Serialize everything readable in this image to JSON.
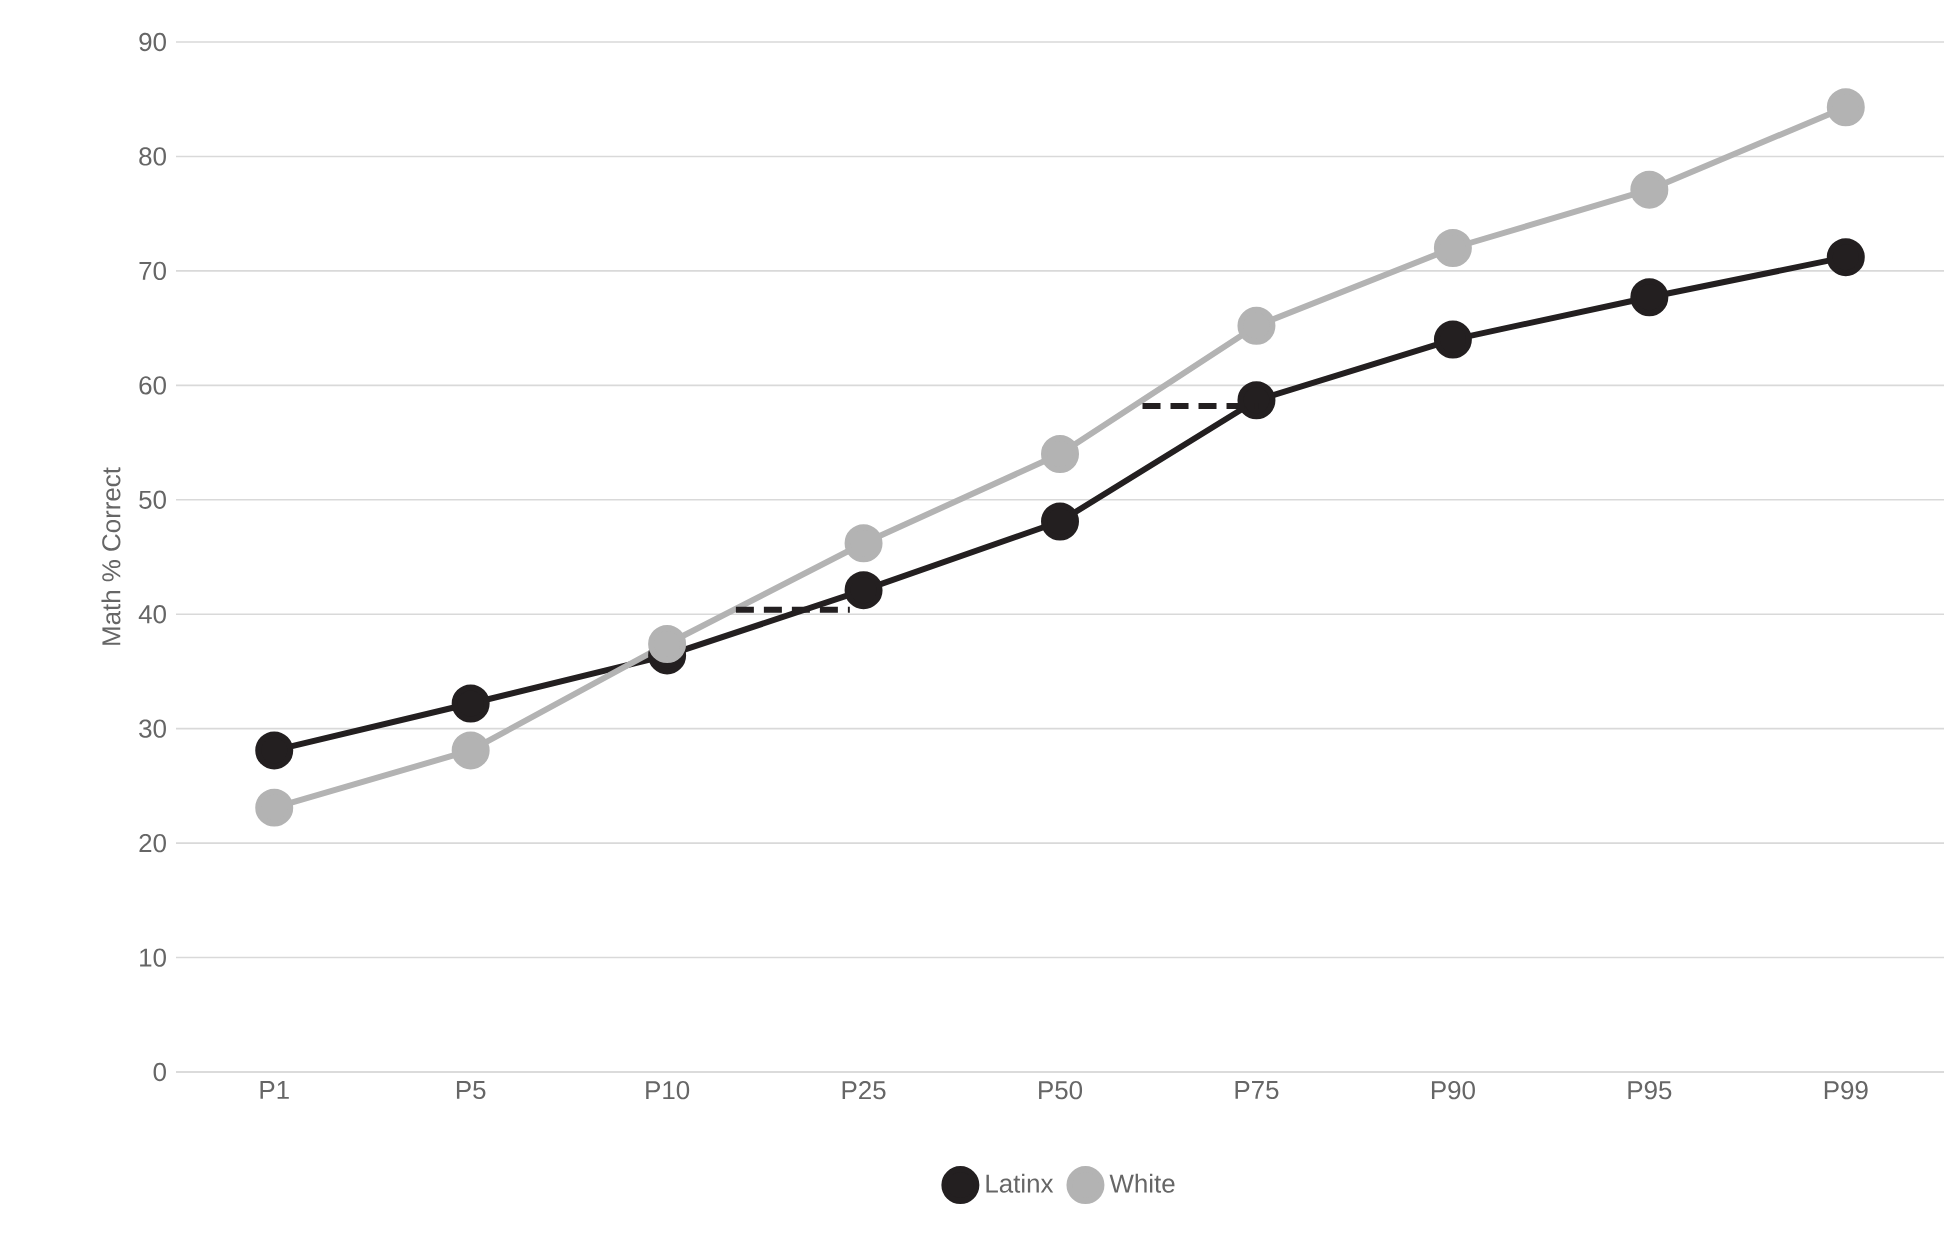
{
  "chart_data": {
    "type": "line",
    "ylabel": "Math % Correct",
    "categories": [
      "P1",
      "P5",
      "P10",
      "P25",
      "P50",
      "P75",
      "P90",
      "P95",
      "P99"
    ],
    "series": [
      {
        "name": "Latinx",
        "color": "#231f20",
        "values": [
          28.1,
          32.2,
          36.4,
          42.1,
          48.1,
          58.7,
          64.0,
          67.7,
          71.2
        ]
      },
      {
        "name": "White",
        "color": "#b3b3b3",
        "values": [
          23.1,
          28.1,
          37.4,
          46.2,
          54.0,
          65.2,
          72.0,
          77.1,
          84.3
        ]
      }
    ],
    "marker": "circle",
    "grid": "y",
    "legend": "bottom",
    "ylim": [
      0,
      90
    ],
    "yticks": [
      0,
      10,
      20,
      30,
      40,
      50,
      60,
      70,
      80,
      90
    ]
  }
}
